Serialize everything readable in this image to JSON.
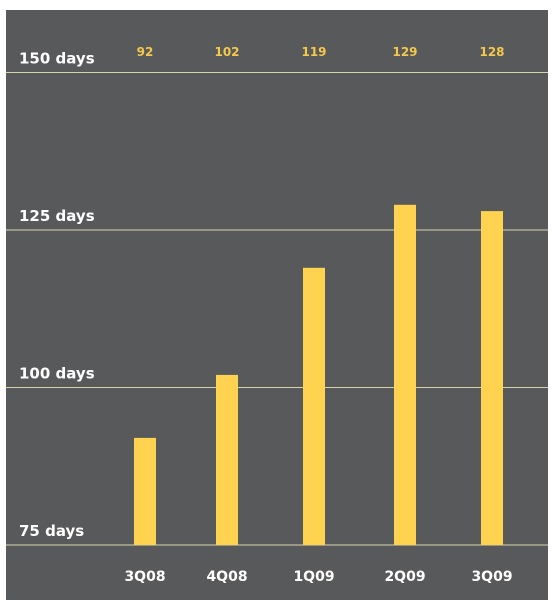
{
  "chart_data": {
    "type": "bar",
    "categories": [
      "3Q08",
      "4Q08",
      "1Q09",
      "2Q09",
      "3Q09"
    ],
    "values": [
      92,
      102,
      119,
      129,
      128
    ],
    "value_labels": [
      "92",
      "102",
      "119",
      "129",
      "128"
    ],
    "y_tick_labels": [
      "150 days",
      "125 days",
      "100 days",
      "75 days"
    ],
    "y_tick_values": [
      150,
      125,
      100,
      75
    ],
    "ylim": [
      75,
      150
    ],
    "grid": true,
    "colors": {
      "background": "#58595b",
      "bar": "#ffd24f",
      "value_label": "#f5c84c",
      "gridline": "#d8d3ad",
      "text": "#ffffff"
    }
  }
}
